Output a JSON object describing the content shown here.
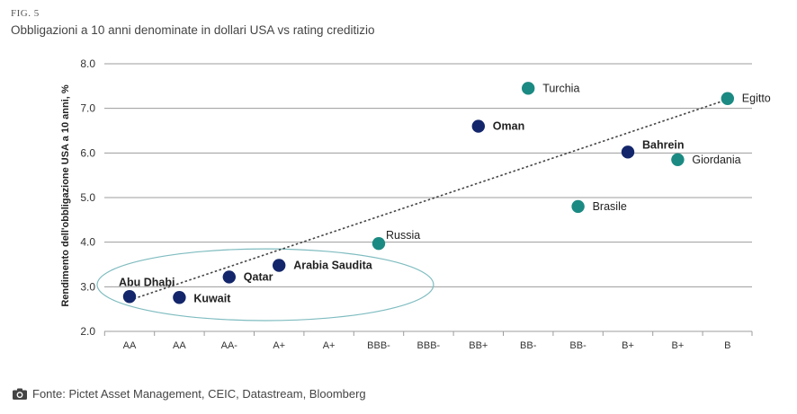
{
  "figure": {
    "label": "FIG. 5",
    "title": "Obbligazioni a 10 anni denominate in dollari USA vs rating creditizio"
  },
  "source": {
    "text": "Fonte: Pictet Asset Management, CEIC, Datastream, Bloomberg",
    "icon": "camera-icon"
  },
  "colors": {
    "dark_blue": "#13266b",
    "teal": "#1b8a82",
    "grid": "#9c9c9c",
    "ellipse": "#7fbcc0",
    "trend": "#444444"
  },
  "chart_data": {
    "type": "scatter",
    "title": "Obbligazioni a 10 anni denominate in dollari USA vs rating creditizio",
    "xlabel": "",
    "ylabel": "Rendimento dell'obbligazione USA a 10 anni, %",
    "categories": [
      "AA",
      "AA",
      "AA-",
      "A+",
      "A+",
      "BBB-",
      "BBB-",
      "BB+",
      "BB-",
      "BB-",
      "B+",
      "B+",
      "B"
    ],
    "ylim": [
      2.0,
      8.0
    ],
    "yticks": [
      "2.0",
      "3.0",
      "4.0",
      "5.0",
      "6.0",
      "7.0",
      "8.0"
    ],
    "grid": "horizontal",
    "points": [
      {
        "label": "Abu Dhabi",
        "x_index": 0,
        "y": 2.78,
        "group": "dark",
        "bold": true
      },
      {
        "label": "Kuwait",
        "x_index": 1,
        "y": 2.76,
        "group": "dark",
        "bold": true
      },
      {
        "label": "Qatar",
        "x_index": 2,
        "y": 3.22,
        "group": "dark",
        "bold": true
      },
      {
        "label": "Arabia Saudita",
        "x_index": 3,
        "y": 3.48,
        "group": "dark",
        "bold": true
      },
      {
        "label": "Russia",
        "x_index": 5,
        "y": 3.97,
        "group": "teal",
        "bold": false
      },
      {
        "label": "Oman",
        "x_index": 7,
        "y": 6.6,
        "group": "dark",
        "bold": true
      },
      {
        "label": "Turchia",
        "x_index": 8,
        "y": 7.45,
        "group": "teal",
        "bold": false
      },
      {
        "label": "Brasile",
        "x_index": 9,
        "y": 4.8,
        "group": "teal",
        "bold": false
      },
      {
        "label": "Bahrein",
        "x_index": 10,
        "y": 6.02,
        "group": "dark",
        "bold": true
      },
      {
        "label": "Giordania",
        "x_index": 11,
        "y": 5.85,
        "group": "teal",
        "bold": false
      },
      {
        "label": "Egitto",
        "x_index": 12,
        "y": 7.22,
        "group": "teal",
        "bold": false
      }
    ],
    "trendline": {
      "from": {
        "x_index": 0,
        "y": 2.7
      },
      "to": {
        "x_index": 12,
        "y": 7.2
      },
      "style": "dotted"
    },
    "highlight": {
      "shape": "ellipse",
      "x_from_index": 0,
      "x_to_index": 6,
      "y_from": 2.0,
      "y_to": 3.85
    }
  }
}
